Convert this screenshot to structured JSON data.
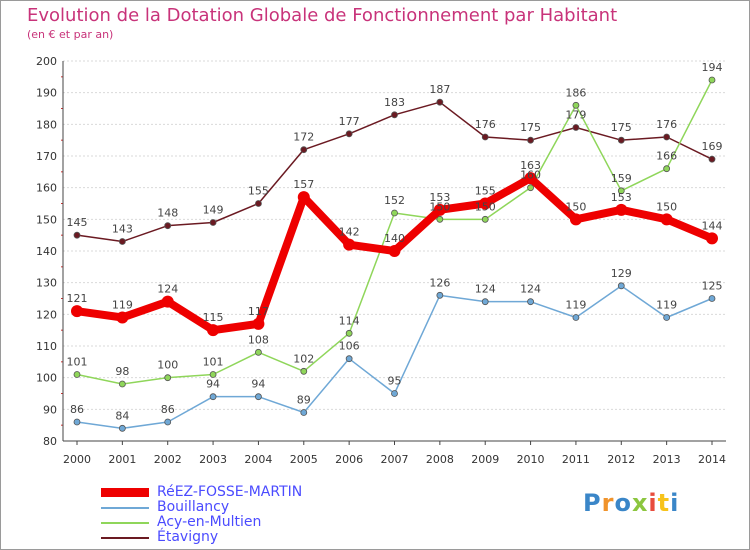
{
  "header": {
    "title": "Evolution de la Dotation Globale de Fonctionnement par Habitant",
    "subtitle": "(en € et par an)"
  },
  "chart_data": {
    "type": "line",
    "title": "Evolution de la Dotation Globale de Fonctionnement par Habitant",
    "subtitle": "(en € et par an)",
    "xlabel": "",
    "ylabel": "",
    "x": [
      2000,
      2001,
      2002,
      2003,
      2004,
      2005,
      2006,
      2007,
      2008,
      2009,
      2010,
      2011,
      2012,
      2013,
      2014
    ],
    "ylim": [
      80,
      200
    ],
    "yticks": [
      80,
      90,
      100,
      110,
      120,
      130,
      140,
      150,
      160,
      170,
      180,
      190,
      200
    ],
    "grid": true,
    "legend_position": "bottom-left",
    "series": [
      {
        "name": "Étavigny",
        "color": "#6b1a22",
        "values": [
          145,
          143,
          148,
          149,
          155,
          172,
          177,
          183,
          187,
          176,
          175,
          179,
          175,
          176,
          169
        ]
      },
      {
        "name": "Acy-en-Multien",
        "color": "#8fd65a",
        "values": [
          101,
          98,
          100,
          101,
          108,
          102,
          114,
          152,
          150,
          150,
          160,
          186,
          159,
          166,
          194
        ]
      },
      {
        "name": "Bouillancy",
        "color": "#6fa8d6",
        "values": [
          86,
          84,
          86,
          94,
          94,
          89,
          106,
          95,
          126,
          124,
          124,
          119,
          129,
          119,
          125
        ]
      },
      {
        "name": "RéEZ-FOSSE-MARTIN",
        "color": "#ee0000",
        "values": [
          121,
          119,
          124,
          115,
          117,
          157,
          142,
          140,
          153,
          155,
          163,
          150,
          153,
          150,
          144
        ]
      }
    ]
  },
  "legend": {
    "items": [
      {
        "label": "RéEZ-FOSSE-MARTIN",
        "color": "#ee0000"
      },
      {
        "label": "Bouillancy",
        "color": "#6fa8d6"
      },
      {
        "label": "Acy-en-Multien",
        "color": "#8fd65a"
      },
      {
        "label": "Étavigny",
        "color": "#6b1a22"
      }
    ]
  },
  "logo": {
    "text": "Proxiti",
    "colors": [
      "#3a86c8",
      "#f0932b",
      "#3a86c8",
      "#8cc63f",
      "#e84c3d",
      "#f7c31b",
      "#3a86c8"
    ]
  }
}
